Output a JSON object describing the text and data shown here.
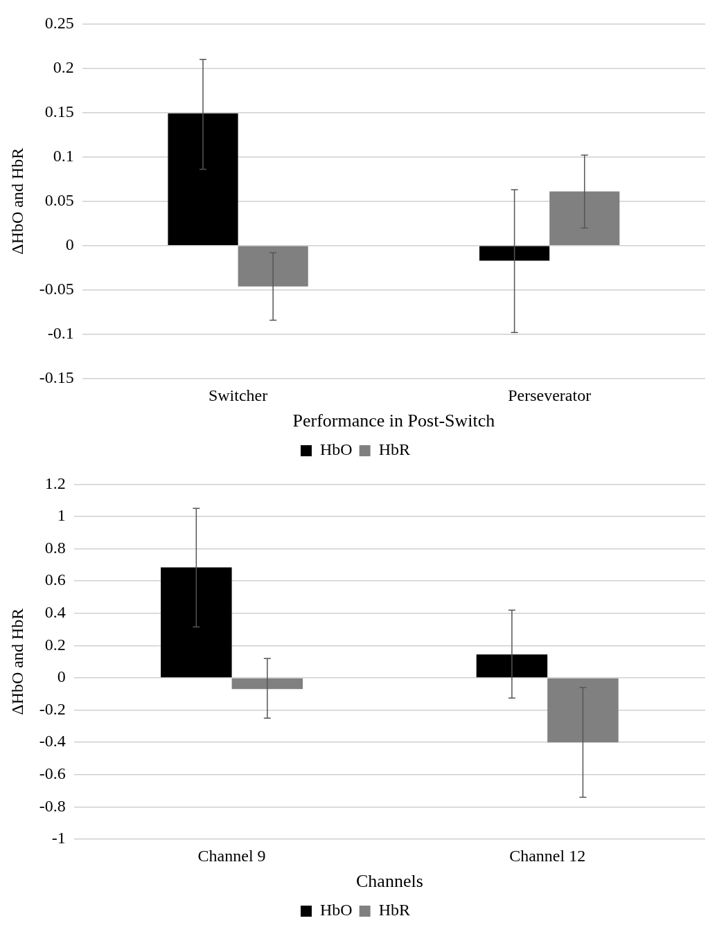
{
  "chart_data": [
    {
      "type": "bar",
      "xlabel": "Performance in Post-Switch",
      "ylabel": "ΔHbO and HbR",
      "categories": [
        "Switcher",
        "Perseverator"
      ],
      "series": [
        {
          "name": "HbO",
          "color": "#000000",
          "values": [
            0.149,
            -0.017
          ],
          "errors": [
            [
              0.086,
              0.21
            ],
            [
              -0.098,
              0.063
            ]
          ]
        },
        {
          "name": "HbR",
          "color": "#808080",
          "values": [
            -0.046,
            0.061
          ],
          "errors": [
            [
              -0.084,
              -0.008
            ],
            [
              0.02,
              0.102
            ]
          ]
        }
      ],
      "ylim": [
        -0.15,
        0.25
      ],
      "yticks": [
        -0.15,
        -0.1,
        -0.05,
        0,
        0.05,
        0.1,
        0.15,
        0.2,
        0.25
      ],
      "grid": "y",
      "legend": "bottom"
    },
    {
      "type": "bar",
      "xlabel": "Channels",
      "ylabel": "ΔHbO and HbR",
      "categories": [
        "Channel 9",
        "Channel 12"
      ],
      "series": [
        {
          "name": "HbO",
          "color": "#000000",
          "values": [
            0.685,
            0.145
          ],
          "errors": [
            [
              0.315,
              1.05
            ],
            [
              -0.125,
              0.42
            ]
          ]
        },
        {
          "name": "HbR",
          "color": "#808080",
          "values": [
            -0.07,
            -0.4
          ],
          "errors": [
            [
              -0.25,
              0.12
            ],
            [
              -0.74,
              -0.06
            ]
          ]
        }
      ],
      "ylim": [
        -1,
        1.2
      ],
      "yticks": [
        -1,
        -0.8,
        -0.6,
        -0.4,
        -0.2,
        0,
        0.2,
        0.4,
        0.6,
        0.8,
        1,
        1.2
      ],
      "grid": "y",
      "legend": "bottom"
    }
  ]
}
